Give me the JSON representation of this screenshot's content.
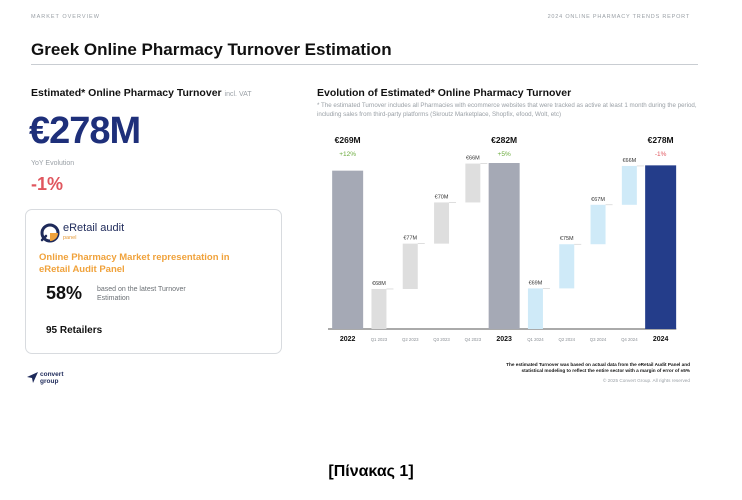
{
  "header": {
    "section": "MARKET OVERVIEW",
    "report": "2024 ONLINE PHARMACY TRENDS REPORT"
  },
  "title": "Greek Online Pharmacy Turnover Estimation",
  "left": {
    "heading": "Estimated* Online Pharmacy Turnover",
    "heading_note": "incl. VAT",
    "big_value": "€278M",
    "yoy_label": "YoY Evolution",
    "yoy_value": "-1%",
    "yoy_color": "#e0565e"
  },
  "panel": {
    "logo_text": "eRetail audit",
    "logo_sub": "panel",
    "heading": "Online Pharmacy Market representation in eRetail Audit Panel",
    "pct": "58%",
    "pct_note": "based on the latest Turnover Estimation",
    "retailers": "95 Retailers"
  },
  "brand": {
    "line1": "convert",
    "line2": "group"
  },
  "chart_title": "Evolution of Estimated* Online Pharmacy Turnover",
  "chart_note": "* The estimated Turnover includes all Pharmacies with ecommerce websites that were tracked as active at least 1 month during the period, including sales from third-party platforms (Skroutz Marketplace, Shopfix, efood, Wolt, etc)",
  "footer": {
    "method": "The estimated Turnover was based on actual data from the eRetail Audit Panel and statistical modeling to reflect the entire sector with a margin of error of ±5%",
    "copyright": "© 2025 Convert Group. All rights reserved"
  },
  "caption": "[Πίνακας 1]",
  "chart_data": {
    "type": "bar",
    "subtype": "waterfall",
    "unit": "€M",
    "ylim": [
      0,
      300
    ],
    "colors": {
      "total_2022": "#a5a9b5",
      "quarter_2023": "#dedede",
      "total_2023": "#a5a9b5",
      "quarter_2024": "#cfeaf8",
      "total_2024": "#243d8a",
      "growth_positive": "#6aab3c",
      "growth_negative": "#e0565e"
    },
    "categories": [
      "2022",
      "Q1 2023",
      "Q2 2023",
      "Q3 2023",
      "Q4 2023",
      "2023",
      "Q1 2024",
      "Q2 2024",
      "Q3 2024",
      "Q4 2024",
      "2024"
    ],
    "bars": [
      {
        "category": "2022",
        "kind": "total",
        "value": 269,
        "label": "€269M",
        "growth": "+12%",
        "growth_sign": "positive",
        "color_key": "total_2022"
      },
      {
        "category": "Q1 2023",
        "kind": "step",
        "value": 68,
        "label": "€68M",
        "color_key": "quarter_2023"
      },
      {
        "category": "Q2 2023",
        "kind": "step",
        "value": 77,
        "label": "€77M",
        "color_key": "quarter_2023"
      },
      {
        "category": "Q3 2023",
        "kind": "step",
        "value": 70,
        "label": "€70M",
        "color_key": "quarter_2023"
      },
      {
        "category": "Q4 2023",
        "kind": "step",
        "value": 66,
        "label": "€66M",
        "color_key": "quarter_2023"
      },
      {
        "category": "2023",
        "kind": "total",
        "value": 282,
        "label": "€282M",
        "growth": "+5%",
        "growth_sign": "positive",
        "color_key": "total_2023"
      },
      {
        "category": "Q1 2024",
        "kind": "step",
        "value": 69,
        "label": "€69M",
        "color_key": "quarter_2024"
      },
      {
        "category": "Q2 2024",
        "kind": "step",
        "value": 75,
        "label": "€75M",
        "color_key": "quarter_2024"
      },
      {
        "category": "Q3 2024",
        "kind": "step",
        "value": 67,
        "label": "€67M",
        "color_key": "quarter_2024"
      },
      {
        "category": "Q4 2024",
        "kind": "step",
        "value": 66,
        "label": "€66M",
        "color_key": "quarter_2024"
      },
      {
        "category": "2024",
        "kind": "total",
        "value": 278,
        "label": "€278M",
        "growth": "-1%",
        "growth_sign": "negative",
        "color_key": "total_2024"
      }
    ]
  }
}
